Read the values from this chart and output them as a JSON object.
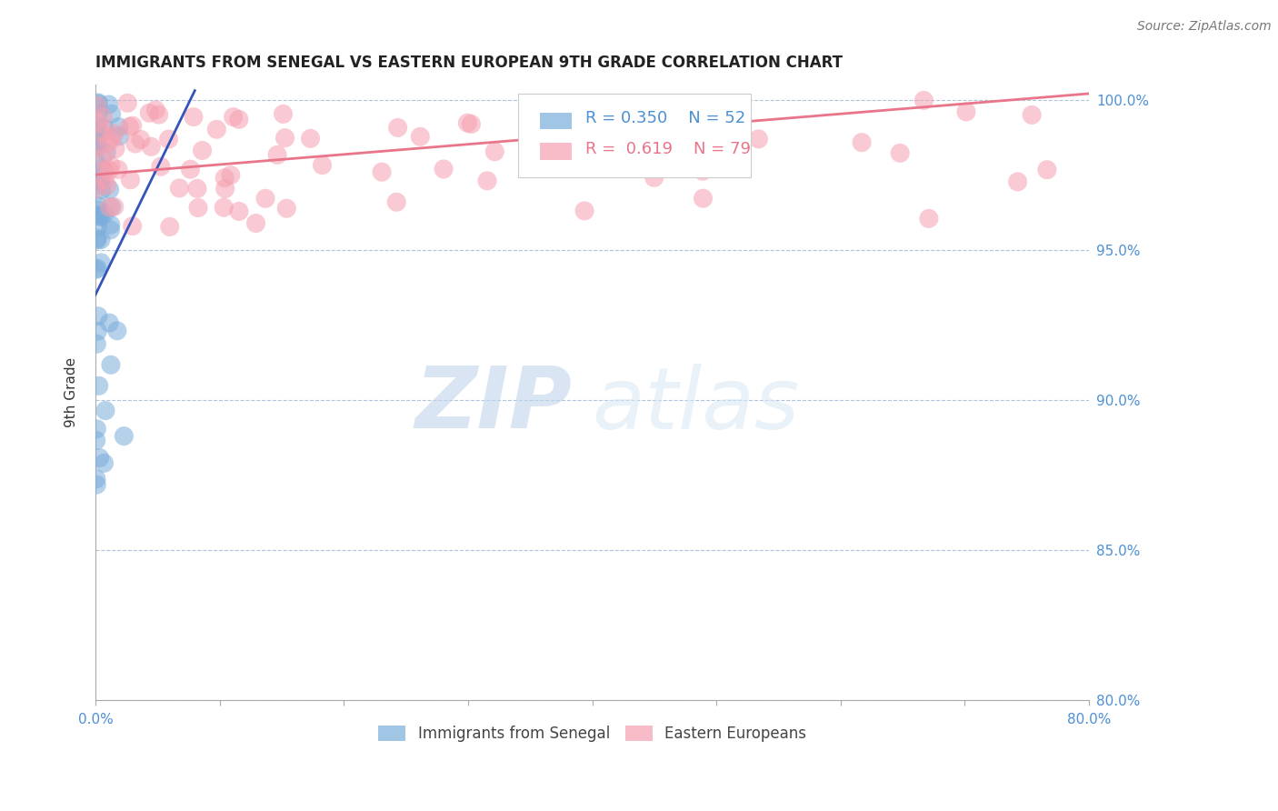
{
  "title": "IMMIGRANTS FROM SENEGAL VS EASTERN EUROPEAN 9TH GRADE CORRELATION CHART",
  "source_text": "Source: ZipAtlas.com",
  "ylabel": "9th Grade",
  "legend_labels": [
    "Immigrants from Senegal",
    "Eastern Europeans"
  ],
  "r_senegal": 0.35,
  "n_senegal": 52,
  "r_eastern": 0.619,
  "n_eastern": 79,
  "color_senegal": "#7aaddb",
  "color_eastern": "#f5a0b0",
  "trendline_senegal": "#3355bb",
  "trendline_eastern": "#e8758a",
  "xlim": [
    0.0,
    0.8
  ],
  "ylim": [
    0.8,
    1.005
  ],
  "yticks": [
    0.8,
    0.85,
    0.9,
    0.95,
    1.0
  ],
  "xticks": [
    0.0,
    0.1,
    0.2,
    0.3,
    0.4,
    0.5,
    0.6,
    0.7,
    0.8
  ],
  "xtick_labels_show": [
    true,
    false,
    false,
    false,
    false,
    false,
    false,
    false,
    true
  ],
  "watermark_zip": "ZIP",
  "watermark_atlas": "atlas",
  "background_color": "#ffffff",
  "grid_color": "#b0c4de",
  "title_fontsize": 12,
  "tick_fontsize": 11,
  "senegal_trendline": [
    0.0,
    0.08,
    0.935,
    1.003
  ],
  "eastern_trendline": [
    0.0,
    0.8,
    0.975,
    1.002
  ]
}
